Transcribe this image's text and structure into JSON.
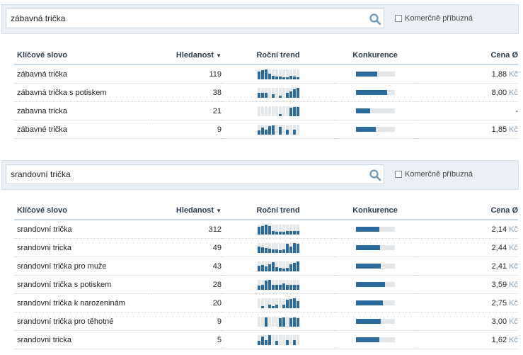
{
  "panels": [
    {
      "query": "zábavná trička",
      "commercial_label": "Komerčně příbuzná",
      "headers": {
        "keyword": "Klíčové slovo",
        "volume": "Hledanost",
        "trend": "Roční trend",
        "competition": "Konkurence",
        "price": "Cena Ø"
      },
      "rows": [
        {
          "keyword": "zábavná trička",
          "volume": "119",
          "trend": [
            0.75,
            0.9,
            1.0,
            0.55,
            0.3,
            0.25,
            0.25,
            0.2,
            0.15,
            0.3,
            0.25,
            0.2
          ],
          "competition": 0.55,
          "price": "1,88",
          "currency": "Kč"
        },
        {
          "keyword": "zábavná trička s potiskem",
          "volume": "38",
          "trend": [
            0.5,
            0.5,
            0.5,
            0,
            0.3,
            0,
            0.15,
            0,
            0.45,
            0.6,
            0.8,
            1.0
          ],
          "competition": 0.8,
          "price": "8,00",
          "currency": "Kč"
        },
        {
          "keyword": "zabavna tricka",
          "volume": "21",
          "trend": [
            0,
            0,
            0,
            0,
            0,
            0,
            0.2,
            0,
            0,
            0.85,
            0.9,
            0.9
          ],
          "competition": 0.38,
          "price": "-",
          "currency": ""
        },
        {
          "keyword": "zábavné trička",
          "volume": "9",
          "trend": [
            0.4,
            0.7,
            0.5,
            0.85,
            0.9,
            0,
            0.75,
            0,
            0.5,
            0,
            0.5,
            0
          ],
          "competition": 0.52,
          "price": "1,85",
          "currency": "Kč"
        }
      ]
    },
    {
      "query": "srandovní trička",
      "commercial_label": "Komerčně příbuzná",
      "headers": {
        "keyword": "Klíčové slovo",
        "volume": "Hledanost",
        "trend": "Roční trend",
        "competition": "Konkurence",
        "price": "Cena Ø"
      },
      "rows": [
        {
          "keyword": "srandovní trička",
          "volume": "312",
          "trend": [
            0.75,
            0.85,
            1.0,
            0.85,
            0.3,
            0.25,
            0.25,
            0.25,
            0.3,
            0.3,
            0.3,
            0.35
          ],
          "competition": 0.6,
          "price": "2,14",
          "currency": "Kč"
        },
        {
          "keyword": "srandovni tricka",
          "volume": "49",
          "trend": [
            0.6,
            0.55,
            0.5,
            0.4,
            0.3,
            0.3,
            0.25,
            0.3,
            0.9,
            0.6,
            1.0,
            0.9
          ],
          "competition": 0.62,
          "price": "2,44",
          "currency": "Kč"
        },
        {
          "keyword": "srandovní trička pro muže",
          "volume": "43",
          "trend": [
            0.55,
            0.6,
            0.5,
            0.7,
            0.9,
            0.4,
            0.35,
            0.25,
            0.3,
            0.7,
            0.8,
            1.0
          ],
          "competition": 0.65,
          "price": "2,41",
          "currency": "Kč"
        },
        {
          "keyword": "srandovní trička s potiskem",
          "volume": "28",
          "trend": [
            0.4,
            0.5,
            0.9,
            1.0,
            0.5,
            0.45,
            0.5,
            0.6,
            0.45,
            0.5,
            0.45,
            0.5
          ],
          "competition": 0.75,
          "price": "3,59",
          "currency": "Kč"
        },
        {
          "keyword": "srandovní trička k narozeninám",
          "volume": "20",
          "trend": [
            0,
            0.2,
            0,
            0.3,
            0.2,
            0.35,
            0,
            0.3,
            0.85,
            0.9,
            1.0,
            0.7
          ],
          "competition": 0.7,
          "price": "2,75",
          "currency": "Kč"
        },
        {
          "keyword": "srandovní trička pro těhotné",
          "volume": "9",
          "trend": [
            0,
            0,
            0.9,
            0,
            0,
            0,
            0.85,
            0.9,
            0,
            0.85,
            0.9,
            0.85
          ],
          "competition": 0.65,
          "price": "3,00",
          "currency": "Kč"
        },
        {
          "keyword": "srandovni tricka",
          "volume": "5",
          "trend": [
            0.4,
            0.8,
            0.5,
            0.95,
            0,
            0.4,
            0,
            0,
            0.5,
            0,
            0.45,
            0
          ],
          "competition": 0.6,
          "price": "1,62",
          "currency": "Kč"
        }
      ]
    }
  ],
  "colors": {
    "accent": "#2b6a9b",
    "track": "#e3e6e8",
    "search_bg": "#e9f1f7",
    "currency": "#8aa0b2"
  },
  "icons": {
    "search": "search-icon",
    "checkbox": "checkbox-icon",
    "sort": "sort-desc-icon"
  }
}
